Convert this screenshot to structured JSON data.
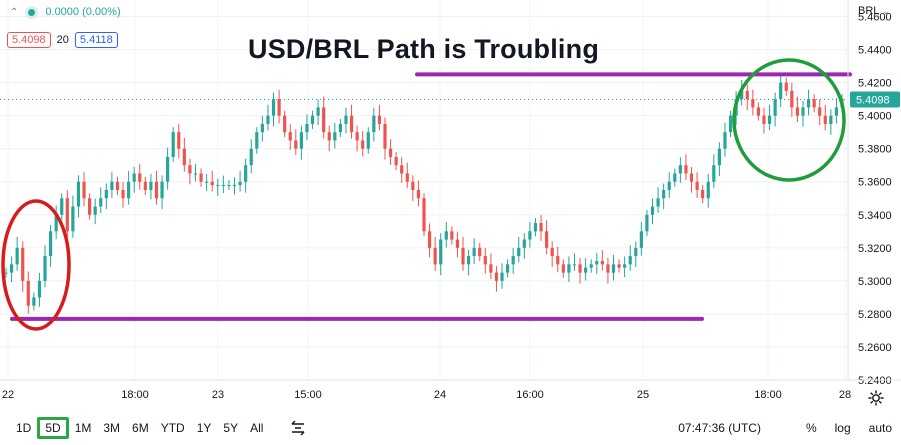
{
  "header": {
    "change": "0.0000 (0.00%)",
    "bid": "5.4098",
    "spread": "20",
    "ask": "5.4118",
    "symbol_currency": "BRL",
    "collapse_icon": "chevron-up-icon",
    "currency_dropdown_icon": "chevron-down-icon"
  },
  "chart_title": "USD/BRL Path is Troubling",
  "colors": {
    "up": "#26a69a",
    "down": "#ef5350",
    "support_resistance": "#9c27b0",
    "red_circle": "#d81b1b",
    "green_circle": "#1e9e3a",
    "last_price_label": "#26a69a",
    "active_tf_outline": "#27a844"
  },
  "chart_data": {
    "type": "candlestick",
    "title": "USD/BRL Path is Troubling",
    "ylim": [
      5.24,
      5.47
    ],
    "y_ticks": [
      "5.4600",
      "5.4400",
      "5.4200",
      "5.4000",
      "5.3800",
      "5.3600",
      "5.3400",
      "5.3200",
      "5.3000",
      "5.2800",
      "5.2600",
      "5.2400"
    ],
    "x_ticks": [
      "22",
      "18:00",
      "23",
      "15:00",
      "24",
      "16:00",
      "25",
      "18:00",
      "28"
    ],
    "last_price": "5.4098",
    "path_values": [
      5.305,
      5.31,
      5.32,
      5.3,
      5.285,
      5.29,
      5.3,
      5.315,
      5.33,
      5.34,
      5.35,
      5.33,
      5.345,
      5.36,
      5.35,
      5.34,
      5.345,
      5.35,
      5.355,
      5.36,
      5.355,
      5.35,
      5.36,
      5.365,
      5.36,
      5.355,
      5.36,
      5.35,
      5.36,
      5.375,
      5.39,
      5.38,
      5.37,
      5.365,
      5.365,
      5.36,
      5.36,
      5.358,
      5.358,
      5.358,
      5.358,
      5.358,
      5.36,
      5.37,
      5.38,
      5.39,
      5.395,
      5.4,
      5.41,
      5.4,
      5.39,
      5.385,
      5.38,
      5.39,
      5.395,
      5.4,
      5.405,
      5.39,
      5.385,
      5.39,
      5.395,
      5.4,
      5.39,
      5.385,
      5.38,
      5.39,
      5.4,
      5.395,
      5.38,
      5.375,
      5.37,
      5.365,
      5.36,
      5.355,
      5.35,
      5.33,
      5.32,
      5.31,
      5.325,
      5.33,
      5.325,
      5.32,
      5.31,
      5.315,
      5.32,
      5.315,
      5.31,
      5.305,
      5.3,
      5.305,
      5.31,
      5.315,
      5.32,
      5.325,
      5.33,
      5.335,
      5.33,
      5.32,
      5.315,
      5.31,
      5.305,
      5.31,
      5.31,
      5.305,
      5.308,
      5.31,
      5.312,
      5.31,
      5.305,
      5.31,
      5.308,
      5.31,
      5.315,
      5.32,
      5.33,
      5.34,
      5.345,
      5.35,
      5.355,
      5.36,
      5.365,
      5.37,
      5.365,
      5.36,
      5.355,
      5.35,
      5.36,
      5.37,
      5.38,
      5.39,
      5.4,
      5.41,
      5.415,
      5.41,
      5.405,
      5.4,
      5.395,
      5.4,
      5.41,
      5.42,
      5.415,
      5.405,
      5.4,
      5.405,
      5.41,
      5.405,
      5.4,
      5.395,
      5.4,
      5.405,
      5.41
    ],
    "resistance_level": 5.425,
    "support_level": 5.277,
    "annotations": [
      "red circle around the lows near 22",
      "green circle around the highs near 25–28"
    ]
  },
  "toolbar": {
    "timeframes": [
      "1D",
      "5D",
      "1M",
      "3M",
      "6M",
      "YTD",
      "1Y",
      "5Y",
      "All"
    ],
    "active": "5D",
    "compare_icon": "compare-icon",
    "clock": "07:47:36 (UTC)",
    "percent": "%",
    "log": "log",
    "auto": "auto",
    "settings_icon": "gear-icon"
  }
}
